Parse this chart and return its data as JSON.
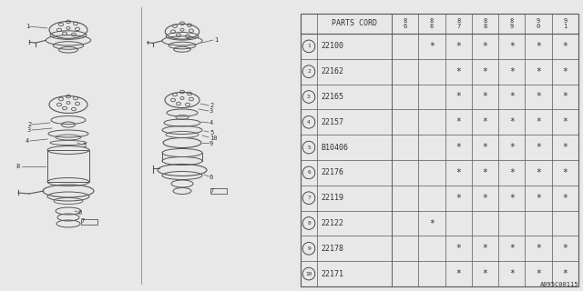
{
  "bg_color": "#e8e8e8",
  "diagram_note": "A095C00115",
  "line_color": "#555555",
  "text_color": "#333333",
  "table": {
    "header_col1": "PARTS CORD",
    "col_headers_top": [
      "8",
      "8",
      "8",
      "8",
      "8",
      "9",
      "9"
    ],
    "col_headers_bot": [
      "6",
      "6",
      "7",
      "8",
      "9",
      "0",
      "1"
    ],
    "rows": [
      {
        "num": 1,
        "part": "22100",
        "marks": [
          false,
          true,
          true,
          true,
          true,
          true,
          true
        ]
      },
      {
        "num": 2,
        "part": "22162",
        "marks": [
          false,
          false,
          true,
          true,
          true,
          true,
          true
        ]
      },
      {
        "num": 3,
        "part": "22165",
        "marks": [
          false,
          false,
          true,
          true,
          true,
          true,
          true
        ]
      },
      {
        "num": 4,
        "part": "22157",
        "marks": [
          false,
          false,
          true,
          true,
          true,
          true,
          true
        ]
      },
      {
        "num": 5,
        "part": "B10406",
        "marks": [
          false,
          false,
          true,
          true,
          true,
          true,
          true
        ]
      },
      {
        "num": 6,
        "part": "22176",
        "marks": [
          false,
          false,
          true,
          true,
          true,
          true,
          true
        ]
      },
      {
        "num": 7,
        "part": "22119",
        "marks": [
          false,
          false,
          true,
          true,
          true,
          true,
          true
        ]
      },
      {
        "num": 8,
        "part": "22122",
        "marks": [
          false,
          true,
          false,
          false,
          false,
          false,
          false
        ]
      },
      {
        "num": 9,
        "part": "22178",
        "marks": [
          false,
          false,
          true,
          true,
          true,
          true,
          true
        ]
      },
      {
        "num": 10,
        "part": "22171",
        "marks": [
          false,
          false,
          true,
          true,
          true,
          true,
          true
        ]
      }
    ]
  }
}
